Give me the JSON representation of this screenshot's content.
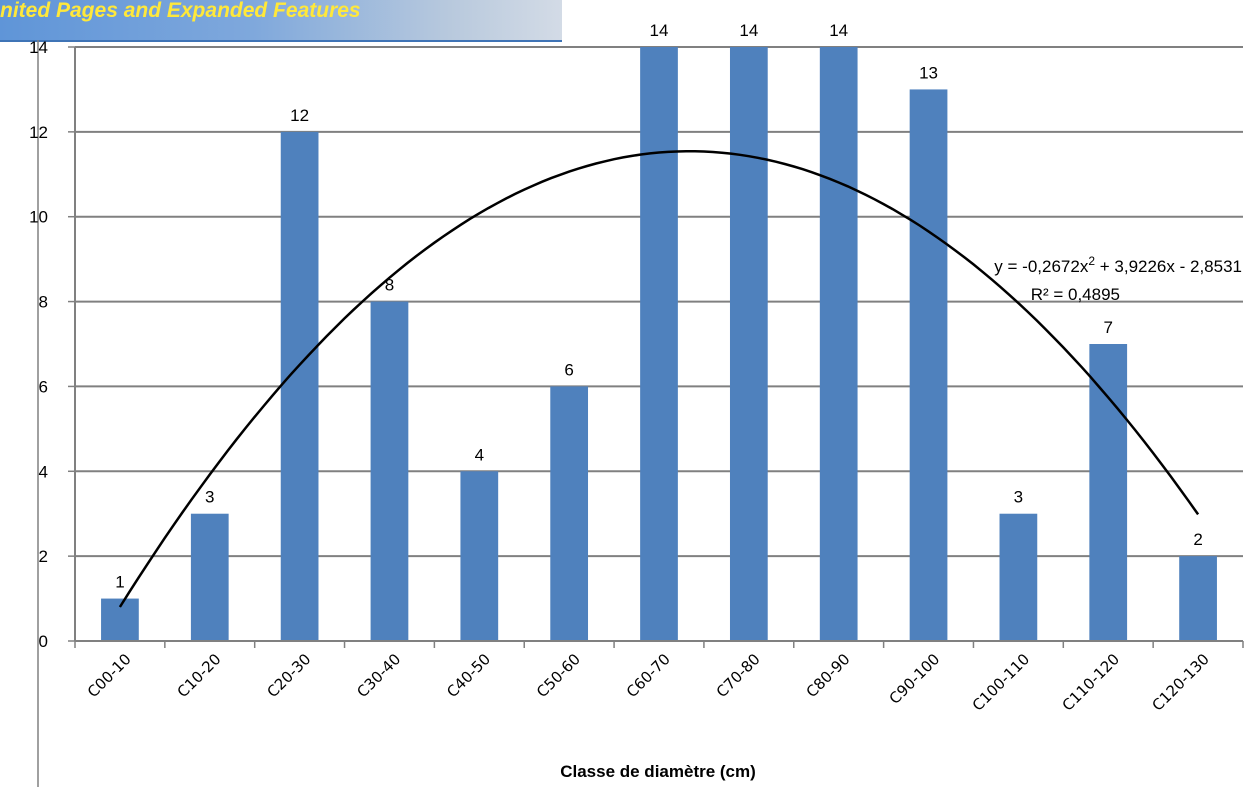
{
  "banner": {
    "text": "nited Pages and Expanded Features"
  },
  "chart_data": {
    "type": "bar",
    "categories": [
      "C00-10",
      "C10-20",
      "C20-30",
      "C30-40",
      "C40-50",
      "C50-60",
      "C60-70",
      "C70-80",
      "C80-90",
      "C90-100",
      "C100-110",
      "C110-120",
      "C120-130"
    ],
    "values": [
      1,
      3,
      12,
      8,
      4,
      6,
      14,
      14,
      14,
      13,
      3,
      7,
      2
    ],
    "title": "",
    "xlabel": "Classe de diamètre (cm)",
    "ylabel": "",
    "ylim": [
      0,
      14
    ],
    "yticks": [
      0,
      2,
      4,
      6,
      8,
      10,
      12,
      14
    ],
    "grid": true,
    "bar_color": "#4f81bd",
    "gridline_color": "#808080",
    "trendline": {
      "type": "polynomial",
      "order": 2,
      "coefficients": [
        -0.2672,
        3.9226,
        -2.8531
      ],
      "equation": "y = -0,2672x² + 3,9226x - 2,8531",
      "r_squared": "R² = 0,4895",
      "color": "#000000"
    }
  }
}
